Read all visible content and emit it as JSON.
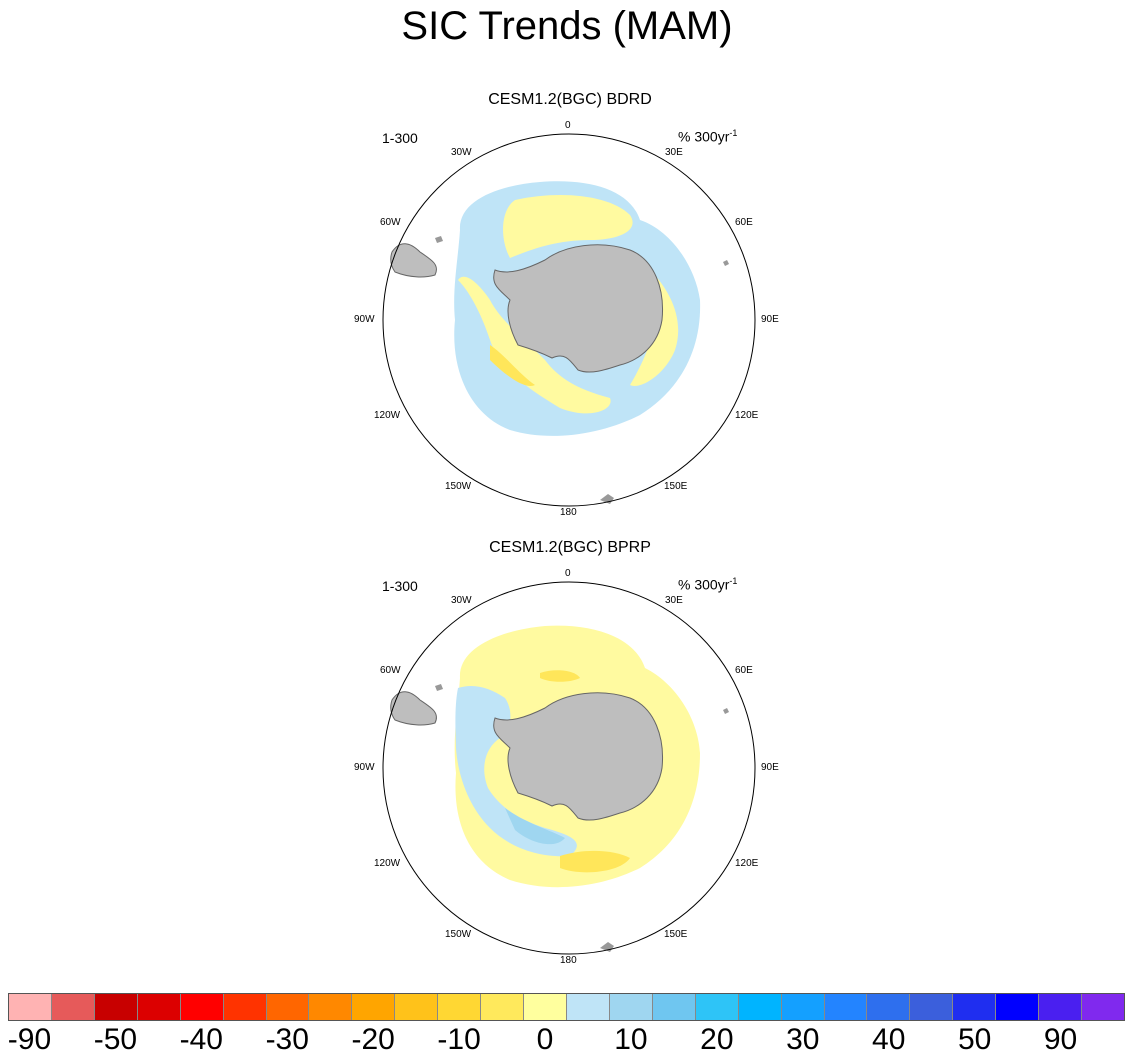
{
  "title": "SIC Trends (MAM)",
  "panels": [
    {
      "title": "CESM1.2(BGC) BDRD",
      "left_label": "1-300",
      "units": "% 300yr",
      "units_exp": "-1"
    },
    {
      "title": "CESM1.2(BGC) BPRP",
      "left_label": "1-300",
      "units": "% 300yr",
      "units_exp": "-1"
    }
  ],
  "longitude_labels": {
    "top": "0",
    "l30w": "30W",
    "r30e": "30E",
    "l60w": "60W",
    "r60e": "60E",
    "l90w": "90W",
    "r90e": "90E",
    "l120w": "120W",
    "r120e": "120E",
    "l150w": "150W",
    "r150e": "150E",
    "bottom": "180"
  },
  "colorbar": {
    "colors": [
      "#ffb3b3",
      "#e65a5a",
      "#c80000",
      "#dc0000",
      "#ff0000",
      "#ff3300",
      "#ff6600",
      "#ff8800",
      "#ffa500",
      "#ffc21a",
      "#ffd733",
      "#ffe95c",
      "#ffff9e",
      "#bfe4f7",
      "#9fd6f0",
      "#6fc6f0",
      "#2ec4f7",
      "#00b4ff",
      "#14a0ff",
      "#2384ff",
      "#2e6fee",
      "#3b5fdc",
      "#1f2ef0",
      "#0000ff",
      "#4a1ff0",
      "#8029ee"
    ],
    "labels": [
      "-90",
      "-50",
      "-40",
      "-30",
      "-20",
      "-10",
      "0",
      "10",
      "20",
      "30",
      "40",
      "50",
      "90"
    ]
  },
  "legend_colors": {
    "land": "#bebebe",
    "positive_light": "#fffaa0",
    "positive_mid": "#ffe65a",
    "negative_light": "#bfe4f7",
    "negative_mid": "#9fd6f0"
  }
}
